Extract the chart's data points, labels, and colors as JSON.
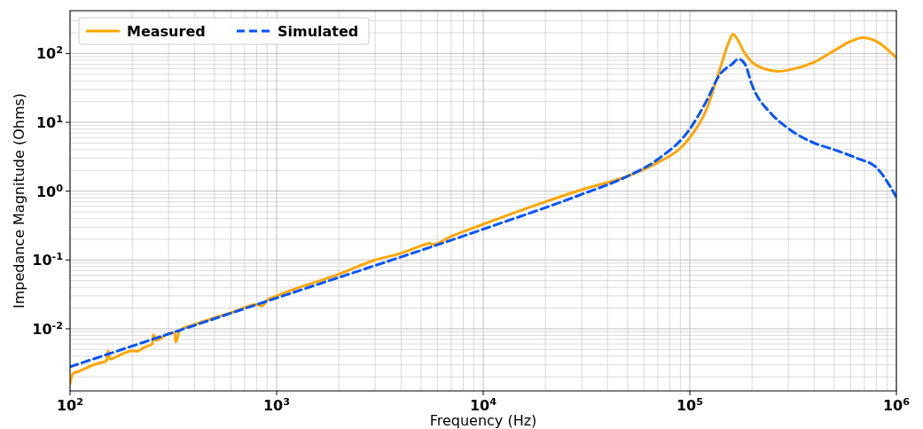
{
  "chart_data": {
    "type": "line",
    "xlabel": "Frequency (Hz)",
    "ylabel": "Impedance Magnitude (Ohms)",
    "log": "xy",
    "grid": true,
    "legend": "top left",
    "xlim": [
      100,
      1000000
    ],
    "ylim": [
      0.00125,
      420
    ],
    "xticks": [
      {
        "value": 100,
        "label": "10$^{2}$"
      },
      {
        "value": 1000,
        "label": "10$^{3}$"
      },
      {
        "value": 10000,
        "label": "10$^{4}$"
      },
      {
        "value": 100000,
        "label": "10$^{5}$"
      },
      {
        "value": 1000000,
        "label": "10$^{6}$"
      }
    ],
    "yticks": [
      {
        "value": 0.01,
        "label": "10$^{-2}$"
      },
      {
        "value": 0.1,
        "label": "10$^{-1}$"
      },
      {
        "value": 1,
        "label": "10$^{0}$"
      },
      {
        "value": 10,
        "label": "10$^{1}$"
      },
      {
        "value": 100,
        "label": "10$^{2}$"
      }
    ],
    "series": [
      {
        "name": "Measured",
        "color": "#ffa500",
        "line_style": "solid",
        "x": [
          100,
          103,
          110,
          120,
          130,
          140,
          150,
          153,
          156,
          170,
          200,
          210,
          230,
          250,
          253,
          260,
          300,
          320,
          325,
          340,
          400,
          500,
          600,
          800,
          850,
          900,
          1000,
          2000,
          3000,
          4000,
          5000,
          5500,
          5700,
          7000,
          10000,
          20000,
          30000,
          50000,
          70000,
          90000,
          100000,
          120000,
          140000,
          155000,
          162000,
          170000,
          185000,
          200000,
          230000,
          266000,
          320000,
          400000,
          500000,
          600000,
          687000,
          800000,
          1000000
        ],
        "values": [
          0.0016,
          0.0022,
          0.0024,
          0.0027,
          0.003,
          0.0032,
          0.0034,
          0.0048,
          0.0036,
          0.004,
          0.0048,
          0.0047,
          0.0054,
          0.006,
          0.0082,
          0.0068,
          0.0085,
          0.0088,
          0.0064,
          0.0095,
          0.0115,
          0.0145,
          0.017,
          0.0225,
          0.0215,
          0.026,
          0.03,
          0.062,
          0.1,
          0.125,
          0.16,
          0.175,
          0.168,
          0.22,
          0.33,
          0.7,
          1.05,
          1.65,
          2.6,
          4.2,
          6,
          15,
          60,
          150,
          192,
          160,
          100,
          75,
          60,
          55,
          60,
          75,
          110,
          150,
          170,
          150,
          86
        ]
      },
      {
        "name": "Simulated",
        "color": "#0055ff",
        "line_style": "dashed",
        "x": [
          100,
          1000,
          10000,
          30000,
          50000,
          70000,
          100000,
          120000,
          140000,
          160000,
          172000,
          185000,
          200000,
          250000,
          294000,
          400000,
          500000,
          646000,
          800000,
          1000000
        ],
        "values": [
          0.0028,
          0.028,
          0.28,
          0.9,
          1.65,
          2.9,
          8,
          20,
          50,
          70,
          83,
          70,
          35,
          13,
          8.5,
          5,
          4,
          3,
          2.2,
          0.82
        ]
      }
    ]
  }
}
